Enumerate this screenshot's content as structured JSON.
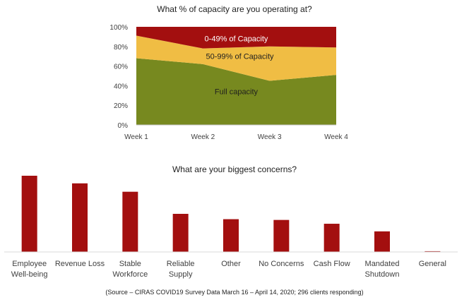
{
  "chart_data": [
    {
      "type": "area",
      "stacked": true,
      "title": "What % of capacity are you operating at?",
      "categories": [
        "Week 1",
        "Week 2",
        "Week 3",
        "Week 4"
      ],
      "ylim": [
        0,
        100
      ],
      "yticks": [
        "0%",
        "20%",
        "40%",
        "60%",
        "80%",
        "100%"
      ],
      "ytick_values": [
        0,
        20,
        40,
        60,
        80,
        100
      ],
      "grid": false,
      "legend": "none (labels placed inside areas)",
      "series": [
        {
          "name": "Full capacity",
          "values": [
            68,
            62,
            45,
            51
          ],
          "color": "#77891f"
        },
        {
          "name": "50-99% of Capacity",
          "values": [
            23,
            16,
            35,
            28
          ],
          "color": "#f0bd44"
        },
        {
          "name": "0-49% of Capacity",
          "values": [
            9,
            22,
            20,
            21
          ],
          "color": "#a30f0f"
        }
      ]
    },
    {
      "type": "bar",
      "title": "What are your biggest concerns?",
      "categories": [
        "Employee\nWell-being",
        "Revenue Loss",
        "Stable\nWorkforce",
        "Reliable\nSupply",
        "Other",
        "No Concerns",
        "Cash Flow",
        "Mandated\nShutdown",
        "General"
      ],
      "values": [
        100,
        90,
        79,
        50,
        43,
        42,
        37,
        27,
        1
      ],
      "ylim": [
        0,
        100
      ],
      "axis_visible": false,
      "grid": false,
      "color": "#a30f0f"
    }
  ],
  "source_note": "(Source – CIRAS COVID19 Survey Data March 16 – April 14, 2020; 296 clients responding)"
}
